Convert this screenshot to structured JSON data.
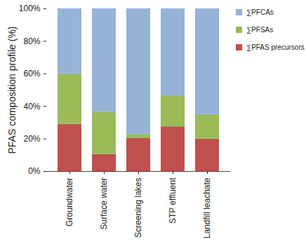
{
  "chart_data": {
    "type": "bar",
    "stacked": true,
    "ylabel": "PFAS composition profile (%)",
    "categories": [
      "Groundwater",
      "Surface water",
      "Screening lakes",
      "STP effluent",
      "Landfill leachate"
    ],
    "series": [
      {
        "name": "∑PFAS precursors",
        "color": "#c0504d",
        "values": [
          29,
          10.5,
          20.5,
          27.5,
          20
        ]
      },
      {
        "name": "∑PFSAs",
        "color": "#9bbb59",
        "values": [
          31,
          26,
          2.5,
          19,
          15
        ]
      },
      {
        "name": "∑PFCAs",
        "color": "#95b3d7",
        "values": [
          40,
          63.5,
          77,
          53.5,
          65
        ]
      }
    ],
    "ylim": [
      0,
      100
    ],
    "yticks": [
      {
        "value": 0,
        "label": "0%"
      },
      {
        "value": 20,
        "label": "20%"
      },
      {
        "value": 40,
        "label": "40%"
      },
      {
        "value": 60,
        "label": "60%"
      },
      {
        "value": 80,
        "label": "80%"
      },
      {
        "value": 100,
        "label": "100%"
      }
    ],
    "legend": "right"
  }
}
